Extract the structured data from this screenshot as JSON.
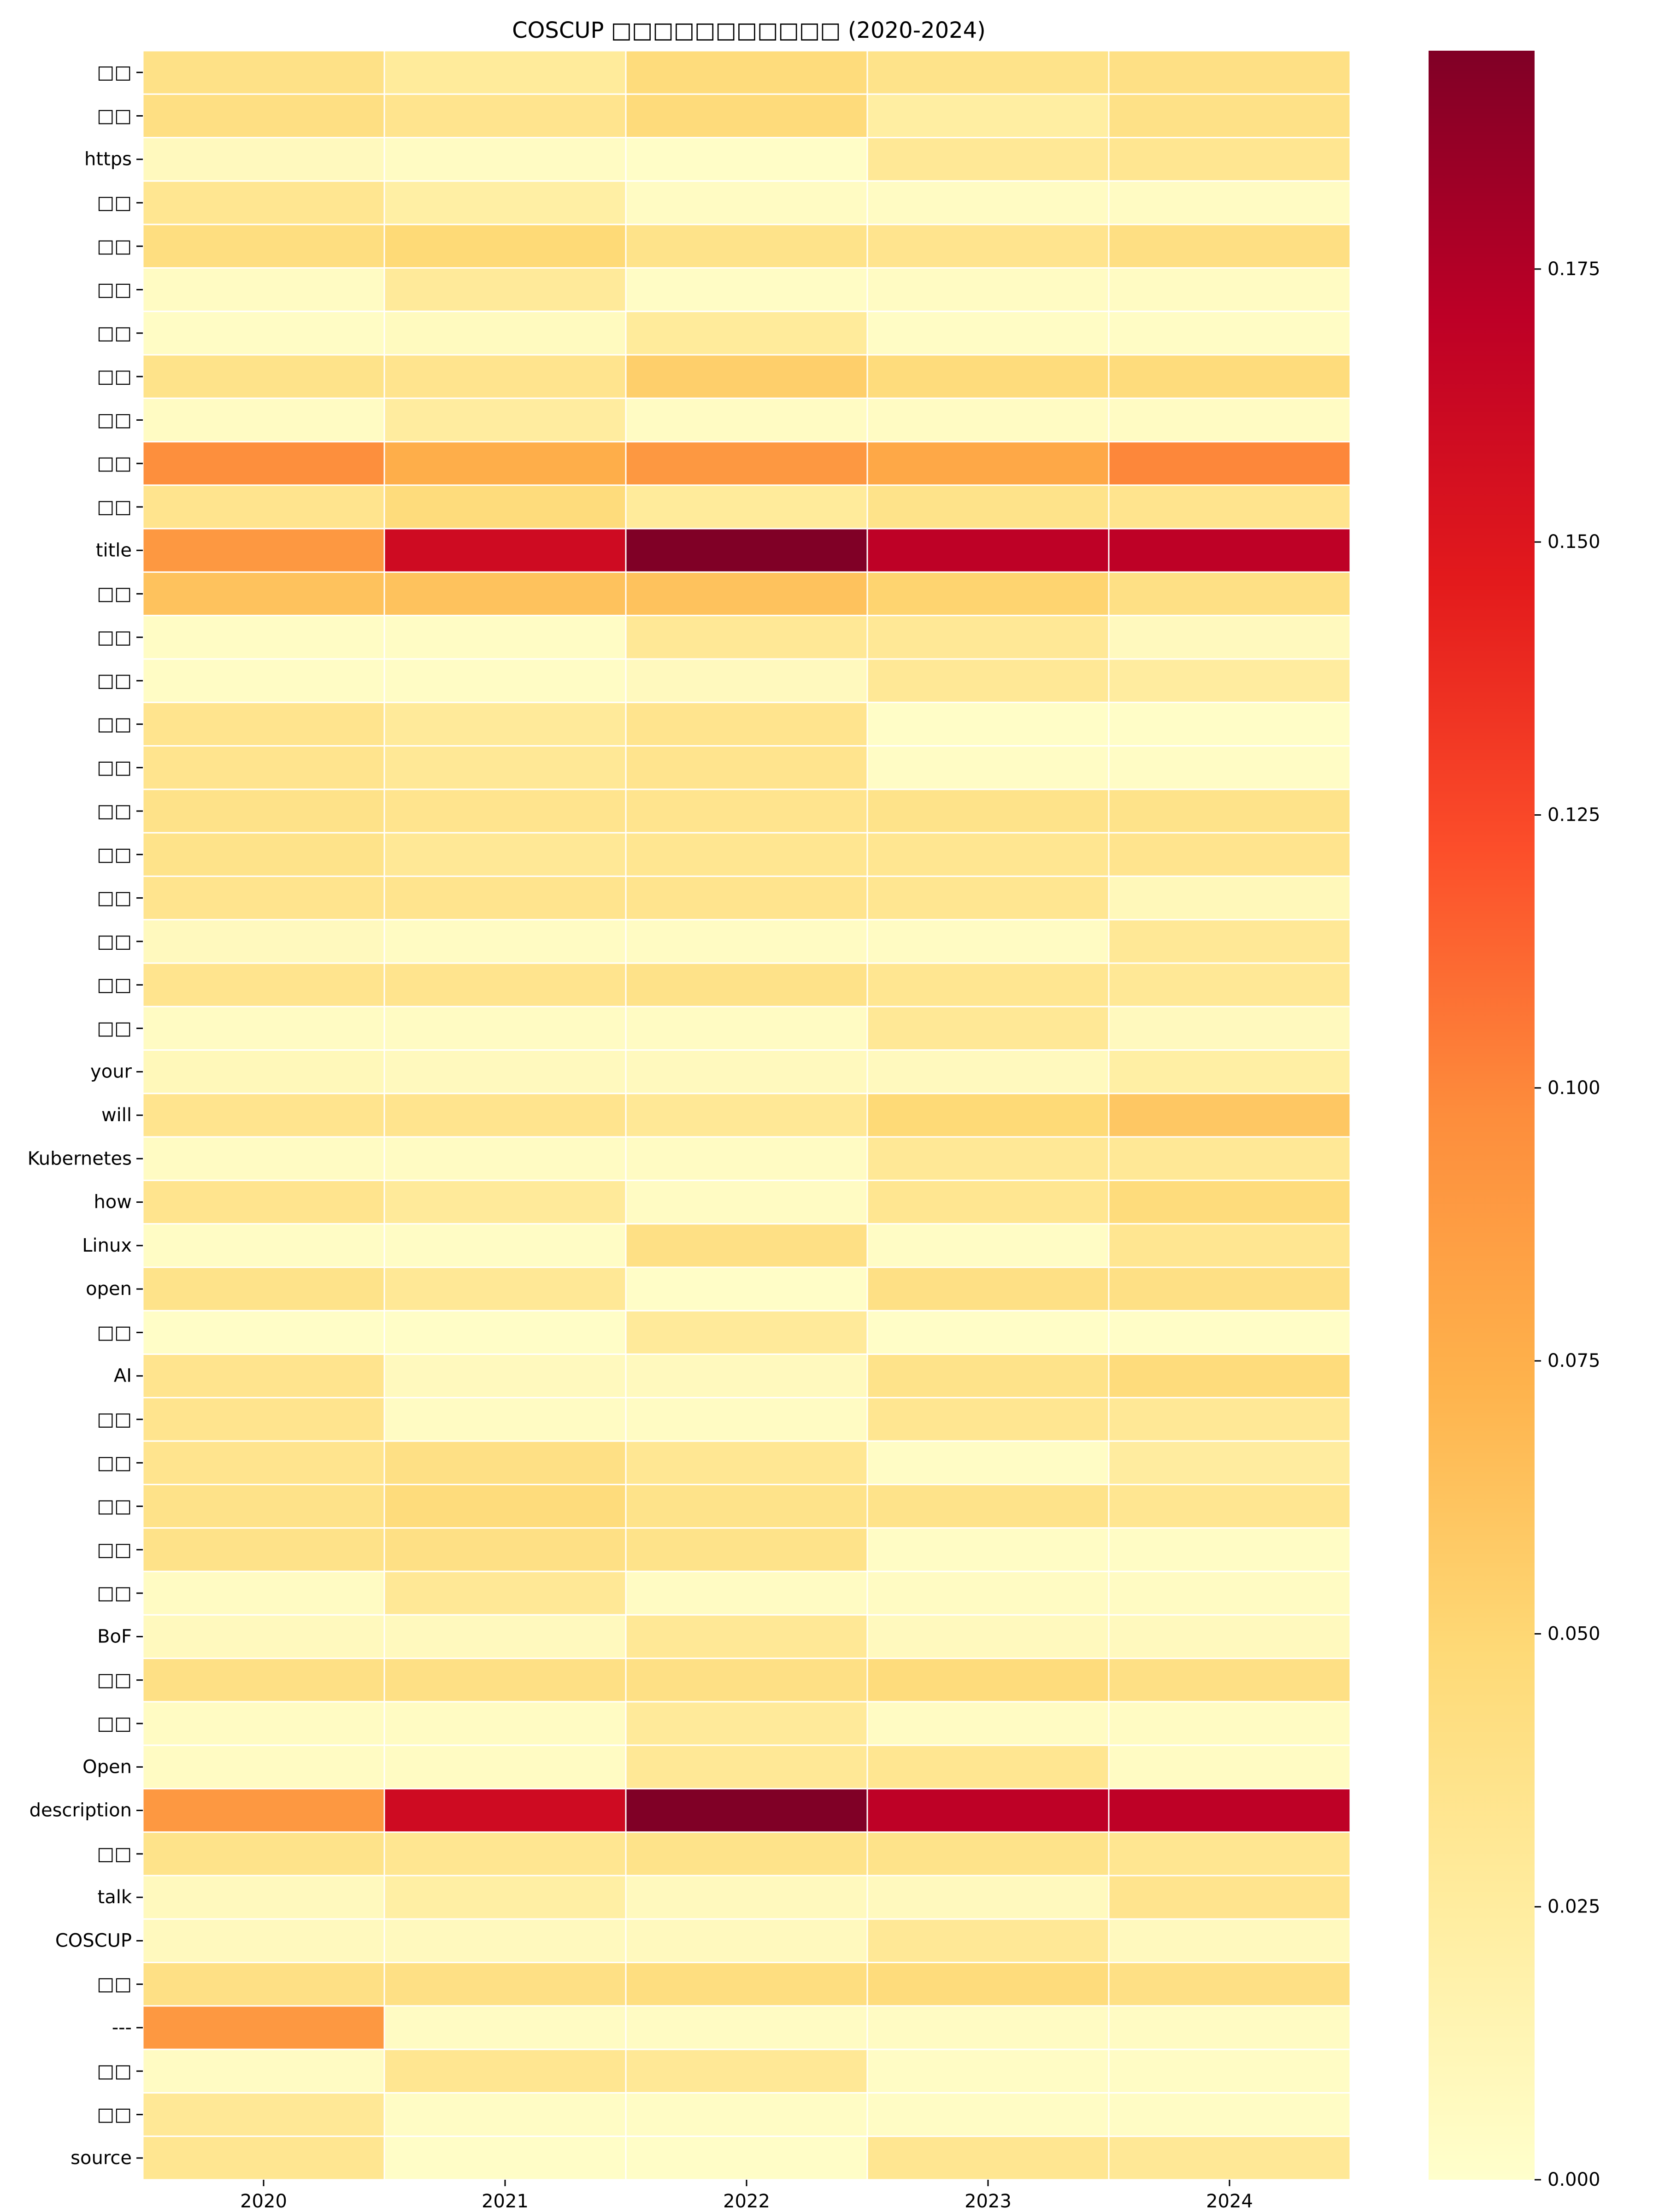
{
  "chart_data": {
    "type": "heatmap",
    "title": "COSCUP □□□□□□□□□□□ (2020-2024)",
    "columns": [
      "2020",
      "2021",
      "2022",
      "2023",
      "2024"
    ],
    "rows": [
      {
        "label": "□□",
        "values": [
          0.039,
          0.027,
          0.045,
          0.037,
          0.04
        ]
      },
      {
        "label": "□□",
        "values": [
          0.041,
          0.035,
          0.046,
          0.023,
          0.039
        ]
      },
      {
        "label": "https",
        "values": [
          0.008,
          0.005,
          0.003,
          0.03,
          0.033
        ]
      },
      {
        "label": "□□",
        "values": [
          0.033,
          0.022,
          0.005,
          0.005,
          0.005
        ]
      },
      {
        "label": "□□",
        "values": [
          0.043,
          0.048,
          0.037,
          0.035,
          0.041
        ]
      },
      {
        "label": "□□",
        "values": [
          0.005,
          0.028,
          0.004,
          0.005,
          0.005
        ]
      },
      {
        "label": "□□",
        "values": [
          0.004,
          0.007,
          0.027,
          0.004,
          0.004
        ]
      },
      {
        "label": "□□",
        "values": [
          0.037,
          0.035,
          0.055,
          0.045,
          0.045
        ]
      },
      {
        "label": "□□",
        "values": [
          0.005,
          0.025,
          0.005,
          0.005,
          0.005
        ]
      },
      {
        "label": "□□",
        "values": [
          0.096,
          0.076,
          0.09,
          0.08,
          0.1
        ]
      },
      {
        "label": "□□",
        "values": [
          0.035,
          0.045,
          0.027,
          0.037,
          0.035
        ]
      },
      {
        "label": "title",
        "values": [
          0.09,
          0.16,
          0.195,
          0.17,
          0.17
        ]
      },
      {
        "label": "□□",
        "values": [
          0.063,
          0.063,
          0.063,
          0.052,
          0.04
        ]
      },
      {
        "label": "□□",
        "values": [
          0.004,
          0.004,
          0.03,
          0.03,
          0.008
        ]
      },
      {
        "label": "□□",
        "values": [
          0.004,
          0.004,
          0.008,
          0.03,
          0.025
        ]
      },
      {
        "label": "□□",
        "values": [
          0.035,
          0.028,
          0.035,
          0.003,
          0.003
        ]
      },
      {
        "label": "□□",
        "values": [
          0.035,
          0.03,
          0.035,
          0.004,
          0.004
        ]
      },
      {
        "label": "□□",
        "values": [
          0.038,
          0.035,
          0.035,
          0.037,
          0.037
        ]
      },
      {
        "label": "□□",
        "values": [
          0.037,
          0.03,
          0.033,
          0.033,
          0.035
        ]
      },
      {
        "label": "□□",
        "values": [
          0.035,
          0.035,
          0.035,
          0.033,
          0.01
        ]
      },
      {
        "label": "□□",
        "values": [
          0.008,
          0.005,
          0.005,
          0.005,
          0.03
        ]
      },
      {
        "label": "□□",
        "values": [
          0.035,
          0.035,
          0.038,
          0.033,
          0.03
        ]
      },
      {
        "label": "□□",
        "values": [
          0.005,
          0.005,
          0.005,
          0.03,
          0.008
        ]
      },
      {
        "label": "your",
        "values": [
          0.01,
          0.008,
          0.008,
          0.008,
          0.022
        ]
      },
      {
        "label": "will",
        "values": [
          0.035,
          0.035,
          0.03,
          0.048,
          0.06
        ]
      },
      {
        "label": "Kubernetes",
        "values": [
          0.005,
          0.005,
          0.005,
          0.03,
          0.03
        ]
      },
      {
        "label": "how",
        "values": [
          0.035,
          0.028,
          0.005,
          0.033,
          0.045
        ]
      },
      {
        "label": "Linux",
        "values": [
          0.004,
          0.004,
          0.04,
          0.004,
          0.033
        ]
      },
      {
        "label": "open",
        "values": [
          0.037,
          0.03,
          0.003,
          0.04,
          0.04
        ]
      },
      {
        "label": "□□",
        "values": [
          0.003,
          0.003,
          0.028,
          0.003,
          0.003
        ]
      },
      {
        "label": "AI",
        "values": [
          0.035,
          0.008,
          0.008,
          0.037,
          0.045
        ]
      },
      {
        "label": "□□",
        "values": [
          0.035,
          0.005,
          0.005,
          0.033,
          0.03
        ]
      },
      {
        "label": "□□",
        "values": [
          0.035,
          0.04,
          0.032,
          0.004,
          0.025
        ]
      },
      {
        "label": "□□",
        "values": [
          0.038,
          0.045,
          0.037,
          0.037,
          0.033
        ]
      },
      {
        "label": "□□",
        "values": [
          0.038,
          0.04,
          0.037,
          0.004,
          0.004
        ]
      },
      {
        "label": "□□",
        "values": [
          0.005,
          0.03,
          0.005,
          0.005,
          0.005
        ]
      },
      {
        "label": "BoF",
        "values": [
          0.008,
          0.008,
          0.03,
          0.008,
          0.008
        ]
      },
      {
        "label": "□□",
        "values": [
          0.04,
          0.04,
          0.04,
          0.045,
          0.04
        ]
      },
      {
        "label": "□□",
        "values": [
          0.005,
          0.005,
          0.028,
          0.005,
          0.005
        ]
      },
      {
        "label": "Open",
        "values": [
          0.005,
          0.005,
          0.03,
          0.033,
          0.005
        ]
      },
      {
        "label": "description",
        "values": [
          0.09,
          0.16,
          0.195,
          0.17,
          0.17
        ]
      },
      {
        "label": "□□",
        "values": [
          0.037,
          0.033,
          0.037,
          0.037,
          0.033
        ]
      },
      {
        "label": "talk",
        "values": [
          0.008,
          0.022,
          0.008,
          0.008,
          0.035
        ]
      },
      {
        "label": "COSCUP",
        "values": [
          0.008,
          0.008,
          0.008,
          0.03,
          0.008
        ]
      },
      {
        "label": "□□",
        "values": [
          0.04,
          0.04,
          0.043,
          0.045,
          0.04
        ]
      },
      {
        "label": "---",
        "values": [
          0.09,
          0.005,
          0.005,
          0.005,
          0.005
        ]
      },
      {
        "label": "□□",
        "values": [
          0.005,
          0.033,
          0.03,
          0.004,
          0.004
        ]
      },
      {
        "label": "□□",
        "values": [
          0.03,
          0.004,
          0.004,
          0.004,
          0.004
        ]
      },
      {
        "label": "source",
        "values": [
          0.033,
          0.003,
          0.003,
          0.033,
          0.03
        ]
      }
    ],
    "colorbar": {
      "min": 0.0,
      "max": 0.195,
      "ticks": [
        "0.000",
        "0.025",
        "0.050",
        "0.075",
        "0.100",
        "0.125",
        "0.150",
        "0.175"
      ],
      "colormap": [
        "#ffffcc",
        "#ffeda0",
        "#fed976",
        "#feb24c",
        "#fd8d3c",
        "#fc4e2a",
        "#e31a1c",
        "#bd0026",
        "#800026"
      ]
    }
  }
}
